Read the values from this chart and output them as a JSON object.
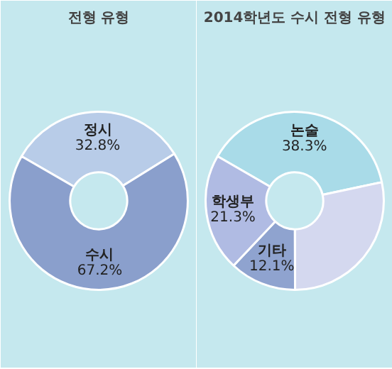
{
  "chart_data": [
    {
      "type": "donut",
      "title": "전형 유형",
      "categories": [
        "정시",
        "수시"
      ],
      "values": [
        32.8,
        67.2
      ],
      "colors": [
        "#b8cce8",
        "#8a9fcc"
      ],
      "value_labels": [
        "32.8%",
        "67.2%"
      ]
    },
    {
      "type": "donut",
      "title": "2014학년도 수시 전형 유형",
      "categories": [
        "논술",
        null,
        "기타",
        "학생부"
      ],
      "values": [
        38.3,
        28.3,
        12.1,
        21.3
      ],
      "colors": [
        "#a9dbe8",
        "#d4d8ef",
        "#8fa3cf",
        "#b0bbe3"
      ],
      "value_labels": [
        "38.3%",
        null,
        "12.1%",
        "21.3%"
      ]
    }
  ]
}
